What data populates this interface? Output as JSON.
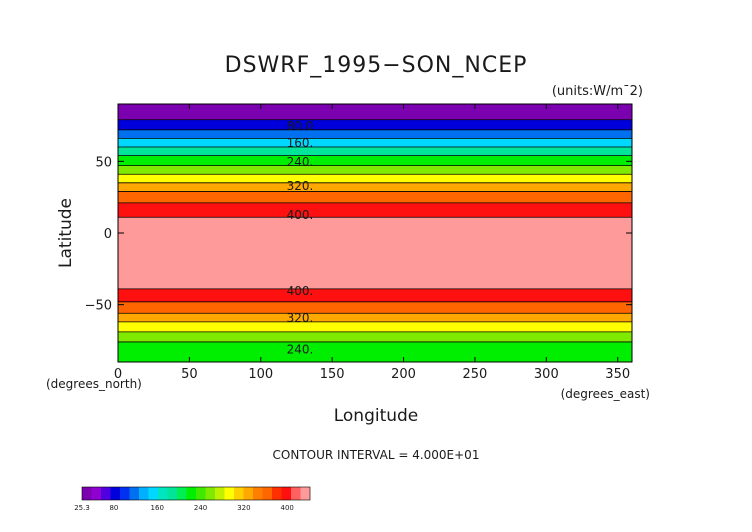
{
  "chart_data": {
    "type": "heatmap",
    "title": "DSWRF_1995−SON_NCEP",
    "units": "(units:W/m¯2)",
    "xlabel": "Longitude",
    "ylabel": "Latitude",
    "x_unit": "(degrees_east)",
    "y_unit": "(degrees_north)",
    "xlim": [
      0,
      360
    ],
    "ylim": [
      -90,
      90
    ],
    "x_ticks": [
      0,
      50,
      100,
      150,
      200,
      250,
      300,
      350
    ],
    "y_ticks": [
      50,
      0,
      -50
    ],
    "y_tick_labels": [
      "50",
      "0",
      "−50"
    ],
    "footer": "CONTOUR INTERVAL = 4.000E+01",
    "bands": [
      {
        "lat_from": 79,
        "lat_to": 90,
        "color": "#7b00b0"
      },
      {
        "lat_from": 72,
        "lat_to": 79,
        "color": "#0000dd"
      },
      {
        "lat_from": 66,
        "lat_to": 72,
        "color": "#0070f0"
      },
      {
        "lat_from": 60,
        "lat_to": 66,
        "color": "#00d8ff"
      },
      {
        "lat_from": 54,
        "lat_to": 60,
        "color": "#00e59a"
      },
      {
        "lat_from": 47,
        "lat_to": 54,
        "color": "#00ee00"
      },
      {
        "lat_from": 41,
        "lat_to": 47,
        "color": "#7fea00"
      },
      {
        "lat_from": 35,
        "lat_to": 41,
        "color": "#ffff00"
      },
      {
        "lat_from": 29,
        "lat_to": 35,
        "color": "#ffa800"
      },
      {
        "lat_from": 21,
        "lat_to": 29,
        "color": "#ff6600"
      },
      {
        "lat_from": 11,
        "lat_to": 21,
        "color": "#ff1010"
      },
      {
        "lat_from": -39,
        "lat_to": 11,
        "color": "#ff9a9a"
      },
      {
        "lat_from": -48,
        "lat_to": -39,
        "color": "#ff1010"
      },
      {
        "lat_from": -56,
        "lat_to": -48,
        "color": "#ff6600"
      },
      {
        "lat_from": -62,
        "lat_to": -56,
        "color": "#ffa800"
      },
      {
        "lat_from": -69,
        "lat_to": -62,
        "color": "#ffff00"
      },
      {
        "lat_from": -76,
        "lat_to": -69,
        "color": "#7fea00"
      },
      {
        "lat_from": -90,
        "lat_to": -76,
        "color": "#00ee00"
      }
    ],
    "contour_labels": [
      {
        "text": "80.0",
        "lat": 75
      },
      {
        "text": "160.",
        "lat": 63
      },
      {
        "text": "240.",
        "lat": 50
      },
      {
        "text": "320.",
        "lat": 33
      },
      {
        "text": "400.",
        "lat": 13
      },
      {
        "text": "400.",
        "lat": -40
      },
      {
        "text": "320.",
        "lat": -59
      },
      {
        "text": "240.",
        "lat": -81
      }
    ],
    "colorbar": {
      "colors": [
        "#7b00b0",
        "#9000d0",
        "#5000e0",
        "#0000dd",
        "#0030f0",
        "#0070f0",
        "#00b0ff",
        "#00d8ff",
        "#00e5c0",
        "#00e59a",
        "#00ee50",
        "#00ee00",
        "#40ea00",
        "#7fea00",
        "#c0f000",
        "#ffff00",
        "#ffd000",
        "#ffa800",
        "#ff8000",
        "#ff6600",
        "#ff3000",
        "#ff1010",
        "#ff6060",
        "#ff9a9a"
      ],
      "tick_labels": [
        {
          "text": "25.3",
          "pos": 0.0
        },
        {
          "text": "80",
          "pos": 0.14
        },
        {
          "text": "160",
          "pos": 0.33
        },
        {
          "text": "240",
          "pos": 0.52
        },
        {
          "text": "320",
          "pos": 0.71
        },
        {
          "text": "400",
          "pos": 0.9
        }
      ]
    }
  }
}
